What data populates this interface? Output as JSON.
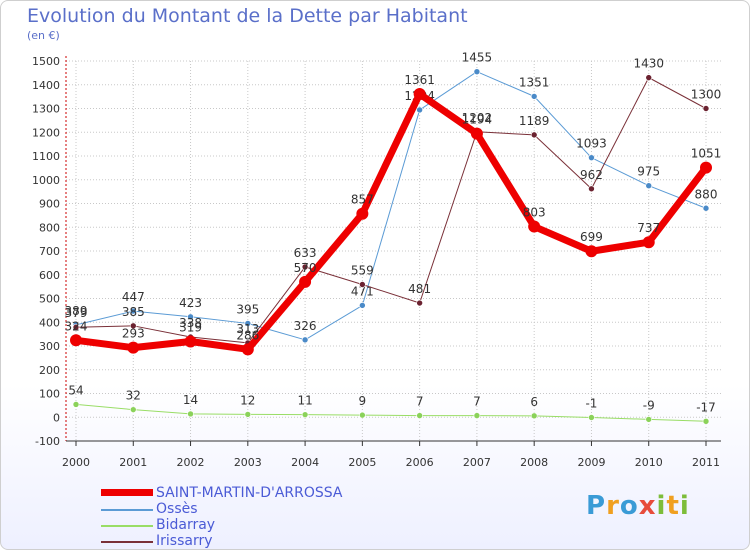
{
  "header": {
    "title": "Evolution du Montant de la Dette par Habitant",
    "subtitle": "(en €)"
  },
  "colors": {
    "title": "#5a6fc9",
    "grid": "#c8c8c8",
    "axis": "#cc0000"
  },
  "chart_data": {
    "type": "line",
    "title": "Evolution du Montant de la Dette par Habitant",
    "subtitle": "(en €)",
    "xlabel": "",
    "ylabel": "",
    "categories": [
      "2000",
      "2001",
      "2002",
      "2003",
      "2004",
      "2005",
      "2006",
      "2007",
      "2008",
      "2009",
      "2010",
      "2011"
    ],
    "ylim": [
      -100,
      1500
    ],
    "yticks": [
      -100,
      0,
      100,
      200,
      300,
      400,
      500,
      600,
      700,
      800,
      900,
      1000,
      1100,
      1200,
      1300,
      1400,
      1500
    ],
    "grid": true,
    "legend_position": "bottom-left",
    "series": [
      {
        "name": "Ossès",
        "color": "#5b9bd5",
        "point_color": "#4a8ac8",
        "width": 1,
        "values": [
          389,
          447,
          423,
          395,
          326,
          471,
          1294,
          1455,
          1351,
          1093,
          975,
          880
        ]
      },
      {
        "name": "Bidarray",
        "color": "#99dd66",
        "point_color": "#8bd25a",
        "width": 1,
        "values": [
          54,
          32,
          14,
          12,
          11,
          9,
          7,
          7,
          6,
          -1,
          -9,
          -17
        ]
      },
      {
        "name": "Irissarry",
        "color": "#7a3038",
        "point_color": "#6b2230",
        "width": 1,
        "values": [
          379,
          385,
          338,
          313,
          633,
          559,
          481,
          1202,
          1189,
          962,
          1430,
          1300
        ]
      },
      {
        "name": "SAINT-MARTIN-D'ARROSSA",
        "color": "#ee0000",
        "point_color": "#ee0000",
        "width": 7,
        "values": [
          324,
          293,
          319,
          286,
          570,
          857,
          1361,
          1194,
          803,
          699,
          737,
          1051
        ]
      }
    ]
  },
  "legend": [
    {
      "name": "SAINT-MARTIN-D'ARROSSA",
      "color": "#ee0000",
      "thickness": 7
    },
    {
      "name": "Ossès",
      "color": "#5b9bd5",
      "thickness": 2
    },
    {
      "name": "Bidarray",
      "color": "#99dd66",
      "thickness": 2
    },
    {
      "name": "Irissarry",
      "color": "#7a3038",
      "thickness": 2
    }
  ],
  "logo": {
    "text": "Proxiti",
    "letters": [
      "P",
      "r",
      "o",
      "x",
      "i",
      "t",
      "i"
    ],
    "colors": [
      "#3a9bd6",
      "#f0a020",
      "#3a9bd6",
      "#e74c3c",
      "#7dbd3a",
      "#f0a020",
      "#7dbd3a"
    ]
  }
}
